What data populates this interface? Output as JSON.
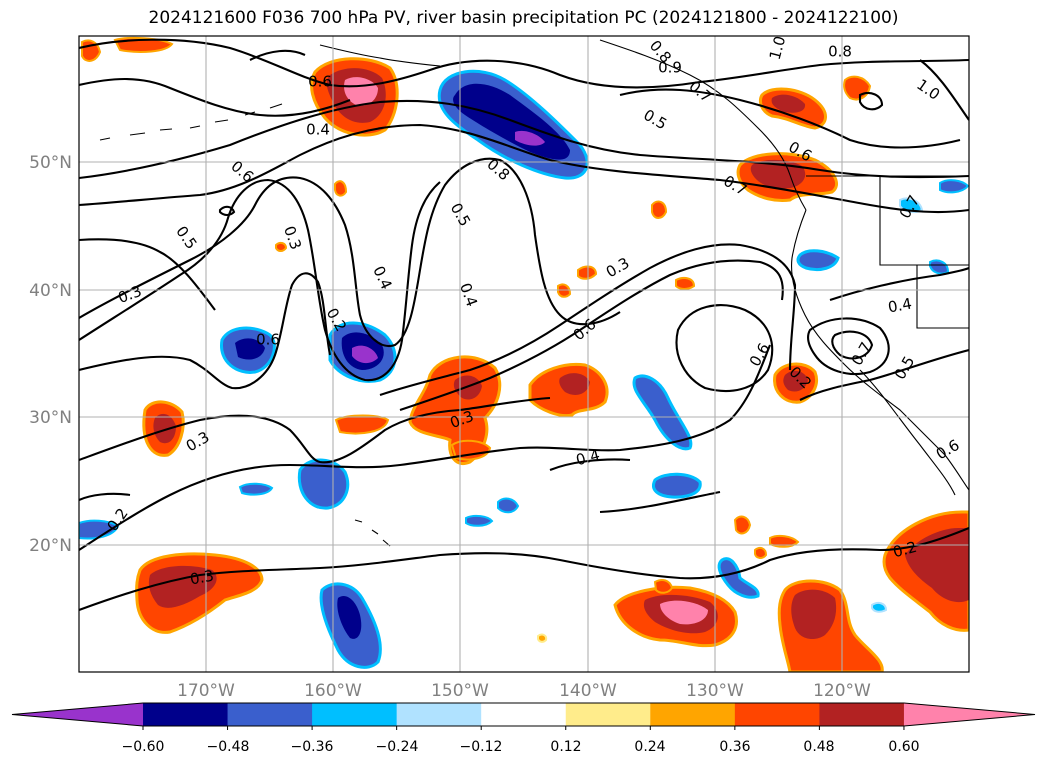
{
  "title": "2024121600 F036 700 hPa PV, river basin precipitation PC (2024121800 - 2024122100)",
  "lat_labels": [
    "50°N",
    "40°N",
    "30°N",
    "20°N"
  ],
  "lon_labels": [
    "170°W",
    "160°W",
    "150°W",
    "140°W",
    "130°W",
    "120°W"
  ],
  "colorbar": {
    "tick_labels": [
      "−0.60",
      "−0.48",
      "−0.36",
      "−0.24",
      "−0.12",
      "0.12",
      "0.24",
      "0.36",
      "0.48",
      "0.60"
    ],
    "colors": [
      "#9933cc",
      "#00008b",
      "#3a5fcd",
      "#00bfff",
      "#b0e2ff",
      "#ffffff",
      "#ffec8b",
      "#ffa500",
      "#ff4500",
      "#b22222",
      "#ff82ab"
    ]
  },
  "contour_labels": [
    "0.8",
    "1.0",
    "0.8",
    "0.9",
    "0.7",
    "1.0",
    "0.5",
    "0.7",
    "0.6",
    "0.6",
    "0.6",
    "0.4",
    "0.8",
    "0.7",
    "0.5",
    "0.3",
    "0.5",
    "0.4",
    "0.4",
    "0.3",
    "0.6",
    "0.6",
    "0.4",
    "0.3",
    "0.2",
    "0.6",
    "0.2",
    "0.7",
    "0.5",
    "0.6",
    "0.3",
    "0.4",
    "0.3",
    "0.2",
    "0.3",
    "0.2"
  ],
  "colors": {
    "purple": "#9933cc",
    "navy": "#00008b",
    "blue": "#3a5fcd",
    "sky": "#00bfff",
    "lightblue": "#b0e2ff",
    "yellow": "#ffec8b",
    "orange": "#ffa500",
    "redorange": "#ff4500",
    "darkred": "#b22222",
    "pink": "#ff82ab"
  }
}
